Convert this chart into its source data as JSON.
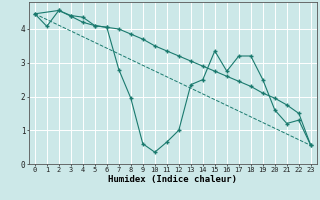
{
  "xlabel": "Humidex (Indice chaleur)",
  "bg_color": "#cce8e8",
  "grid_color": "#b0d8d8",
  "line_color": "#1a7a6e",
  "xlim": [
    -0.5,
    23.5
  ],
  "ylim": [
    0,
    4.8
  ],
  "yticks": [
    0,
    1,
    2,
    3,
    4
  ],
  "xticks": [
    0,
    1,
    2,
    3,
    4,
    5,
    6,
    7,
    8,
    9,
    10,
    11,
    12,
    13,
    14,
    15,
    16,
    17,
    18,
    19,
    20,
    21,
    22,
    23
  ],
  "line1_x": [
    0,
    1,
    2,
    3,
    4,
    5,
    6,
    7,
    8,
    9,
    10,
    11,
    12,
    13,
    14,
    15,
    16,
    17,
    18,
    19,
    20,
    21,
    22,
    23
  ],
  "line1_y": [
    4.45,
    4.08,
    4.55,
    4.38,
    4.2,
    4.1,
    4.05,
    4.0,
    3.85,
    3.7,
    3.5,
    3.35,
    3.2,
    3.05,
    2.9,
    2.75,
    2.6,
    2.45,
    2.3,
    2.1,
    1.95,
    1.75,
    1.5,
    0.55
  ],
  "line2_x": [
    0,
    2,
    3,
    4,
    5,
    6,
    7,
    8,
    9,
    10,
    11,
    12,
    13,
    14,
    15,
    16,
    17,
    18,
    19,
    20,
    21,
    22,
    23
  ],
  "line2_y": [
    4.45,
    4.55,
    4.4,
    4.35,
    4.1,
    4.05,
    2.8,
    1.95,
    0.6,
    0.35,
    0.65,
    1.0,
    2.35,
    2.5,
    3.35,
    2.75,
    3.2,
    3.2,
    2.5,
    1.6,
    1.2,
    1.3,
    0.55
  ],
  "line3_x": [
    0,
    23
  ],
  "line3_y": [
    4.45,
    0.55
  ]
}
